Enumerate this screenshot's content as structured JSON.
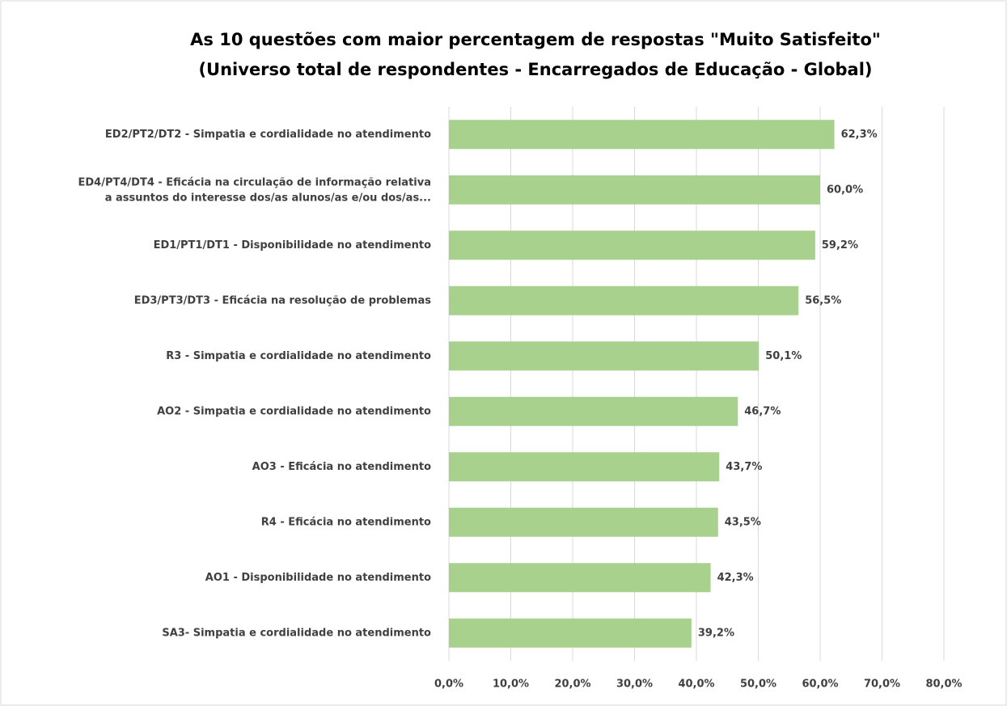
{
  "chart_data": {
    "type": "bar",
    "orientation": "horizontal",
    "title": "As 10 questões com maior percentagem de respostas \"Muito Satisfeito\"",
    "subtitle": "(Universo total de respondentes - Encarregados  de Educação - Global)",
    "categories": [
      "ED2/PT2/DT2 - Simpatia e cordialidade no atendimento",
      "ED4/PT4/DT4 - Eficácia na circulação de informação relativa\na assuntos do interesse dos/as alunos/as e/ou dos/as...",
      "ED1/PT1/DT1 - Disponibilidade no atendimento",
      "ED3/PT3/DT3 - Eficácia na resolução de problemas",
      "R3 - Simpatia e cordialidade no atendimento",
      "AO2 - Simpatia e cordialidade no atendimento",
      "AO3 - Eficácia no atendimento",
      "R4 - Eficácia no atendimento",
      "AO1 - Disponibilidade no atendimento",
      "SA3- Simpatia e cordialidade no atendimento"
    ],
    "values": [
      62.3,
      60.0,
      59.2,
      56.5,
      50.1,
      46.7,
      43.7,
      43.5,
      42.3,
      39.2
    ],
    "value_labels": [
      "62,3%",
      "60,0%",
      "59,2%",
      "56,5%",
      "50,1%",
      "46,7%",
      "43,7%",
      "43,5%",
      "42,3%",
      "39,2%"
    ],
    "color": "#a9d18e",
    "xlim": [
      0,
      80
    ],
    "xticks": [
      {
        "value": 0,
        "label": "0,0%"
      },
      {
        "value": 10,
        "label": "10,0%"
      },
      {
        "value": 20,
        "label": "20,0%"
      },
      {
        "value": 30,
        "label": "30,0%"
      },
      {
        "value": 40,
        "label": "40,0%"
      },
      {
        "value": 50,
        "label": "50,0%"
      },
      {
        "value": 60,
        "label": "60,0%"
      },
      {
        "value": 70,
        "label": "70,0%"
      },
      {
        "value": 80,
        "label": "80,0%"
      }
    ],
    "grid": true
  }
}
